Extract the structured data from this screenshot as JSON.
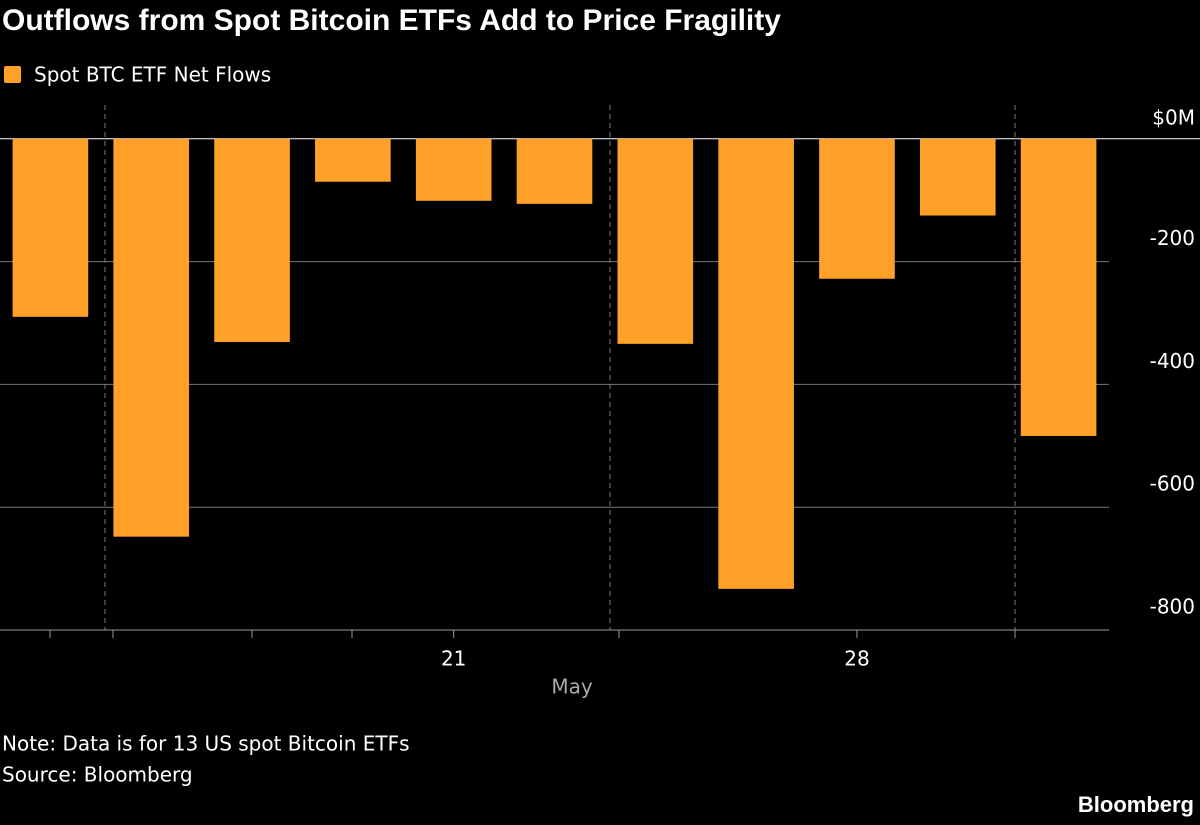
{
  "chart_data": {
    "type": "bar",
    "title": "Outflows from Spot Bitcoin ETFs Add to Price Fragility",
    "x_label": "May",
    "categories": [
      null,
      null,
      null,
      null,
      "21",
      null,
      null,
      null,
      "28",
      null,
      null
    ],
    "series": [
      {
        "name": "Spot BTC ETF Net Flows",
        "color": "#ffa028",
        "values": [
          -290,
          -648,
          -331,
          -70,
          -101,
          -106,
          -334,
          -733,
          -228,
          -125,
          -484
        ]
      }
    ],
    "ylim": [
      -800,
      55
    ],
    "yticks": [
      {
        "value": 0,
        "label": "$0M"
      },
      -200,
      -400,
      -600,
      -800
    ],
    "grid": true,
    "note": "Note: Data is for 13 US spot Bitcoin ETFs",
    "source": "Source: Bloomberg",
    "brand": "Bloomberg"
  }
}
